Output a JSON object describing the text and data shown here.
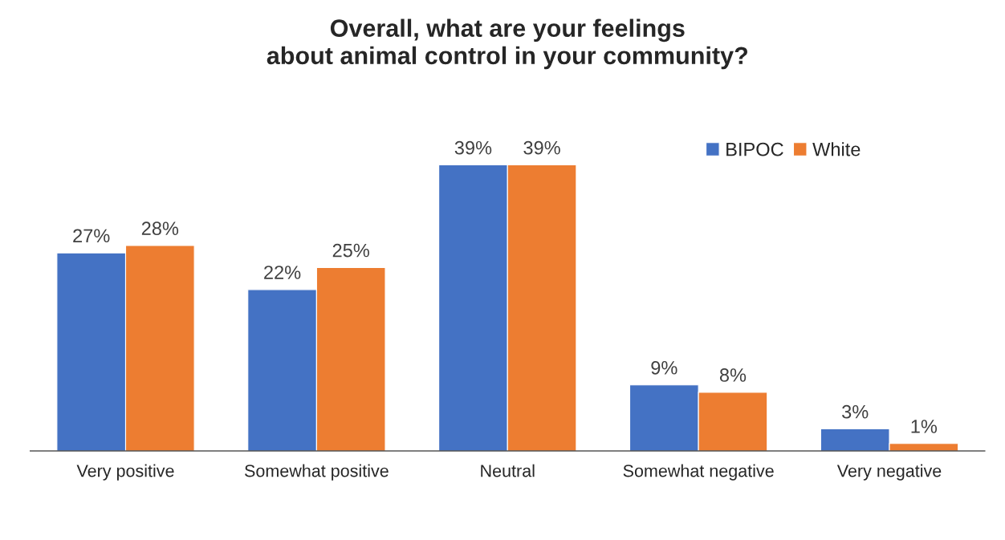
{
  "chart_data": {
    "type": "bar",
    "title": "Overall, what are your feelings\nabout animal control in your community?",
    "categories": [
      "Very positive",
      "Somewhat positive",
      "Neutral",
      "Somewhat negative",
      "Very negative"
    ],
    "series": [
      {
        "name": "BIPOC",
        "color": "#4472c4",
        "values": [
          27,
          22,
          39,
          9,
          3
        ],
        "value_labels": [
          "27%",
          "22%",
          "39%",
          "9%",
          "3%"
        ]
      },
      {
        "name": "White",
        "color": "#ed7d31",
        "values": [
          28,
          25,
          39,
          8,
          1
        ],
        "value_labels": [
          "28%",
          "25%",
          "39%",
          "8%",
          "1%"
        ]
      }
    ],
    "legend": "top right"
  }
}
